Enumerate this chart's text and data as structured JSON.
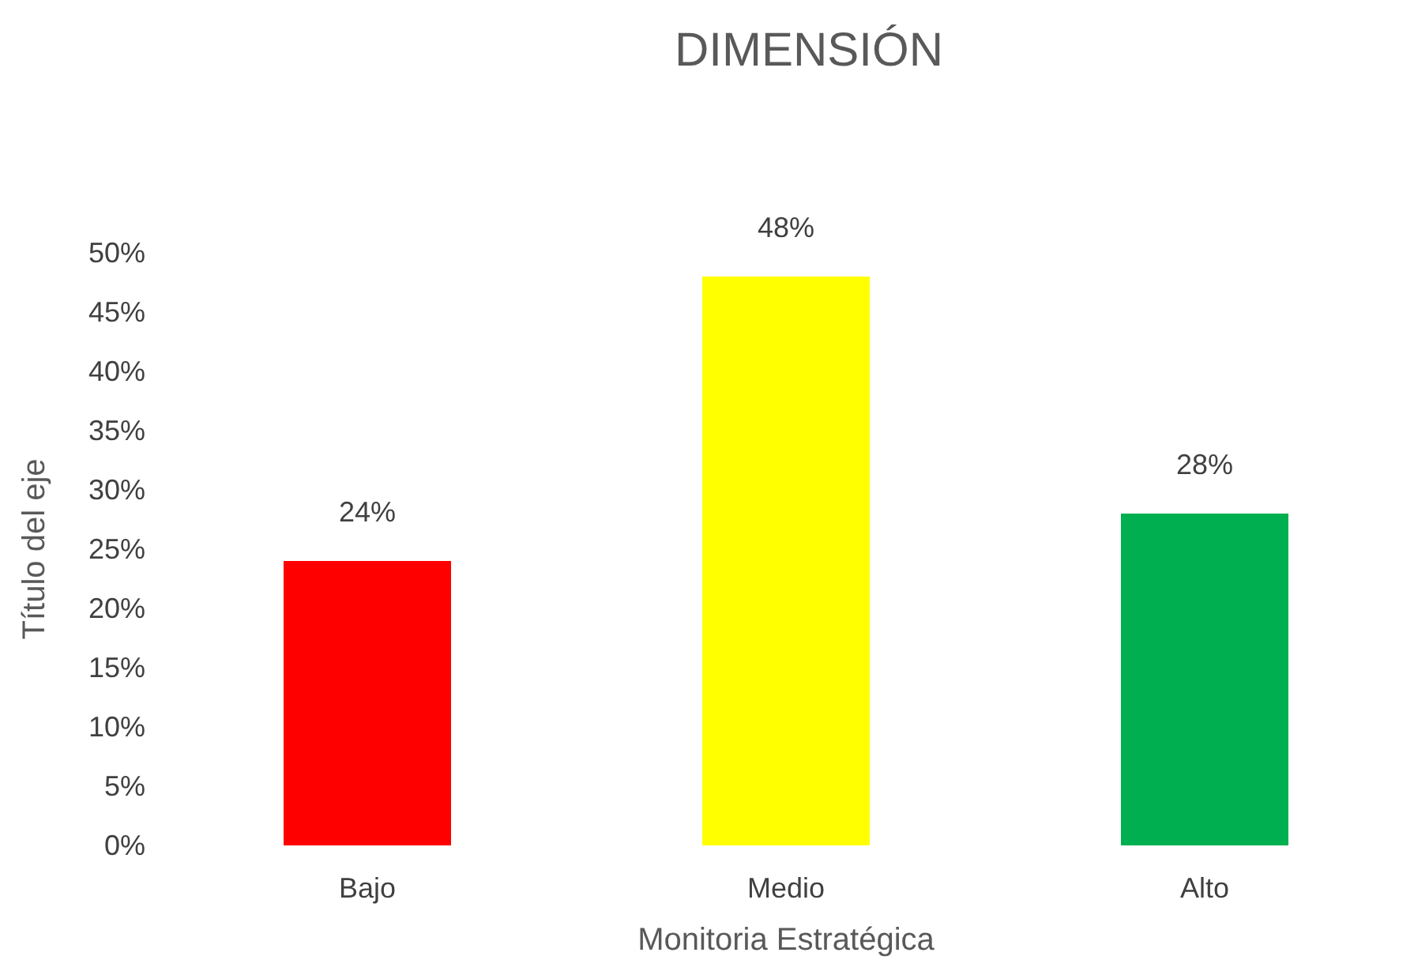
{
  "chart_data": {
    "type": "bar",
    "title": "DIMENSIÓN",
    "xlabel": "Monitoria Estratégica",
    "ylabel": "Título del eje",
    "categories": [
      "Bajo",
      "Medio",
      "Alto"
    ],
    "values": [
      24,
      48,
      28
    ],
    "colors": [
      "#ff0000",
      "#ffff00",
      "#00b050"
    ],
    "value_labels": [
      "24%",
      "48%",
      "28%"
    ],
    "ylim": [
      0,
      50
    ],
    "yticks": [
      {
        "value": 0,
        "label": "0%"
      },
      {
        "value": 5,
        "label": "5%"
      },
      {
        "value": 10,
        "label": "10%"
      },
      {
        "value": 15,
        "label": "15%"
      },
      {
        "value": 20,
        "label": "20%"
      },
      {
        "value": 25,
        "label": "25%"
      },
      {
        "value": 30,
        "label": "30%"
      },
      {
        "value": 35,
        "label": "35%"
      },
      {
        "value": 40,
        "label": "40%"
      },
      {
        "value": 45,
        "label": "45%"
      },
      {
        "value": 50,
        "label": "50%"
      }
    ],
    "grid": false
  }
}
